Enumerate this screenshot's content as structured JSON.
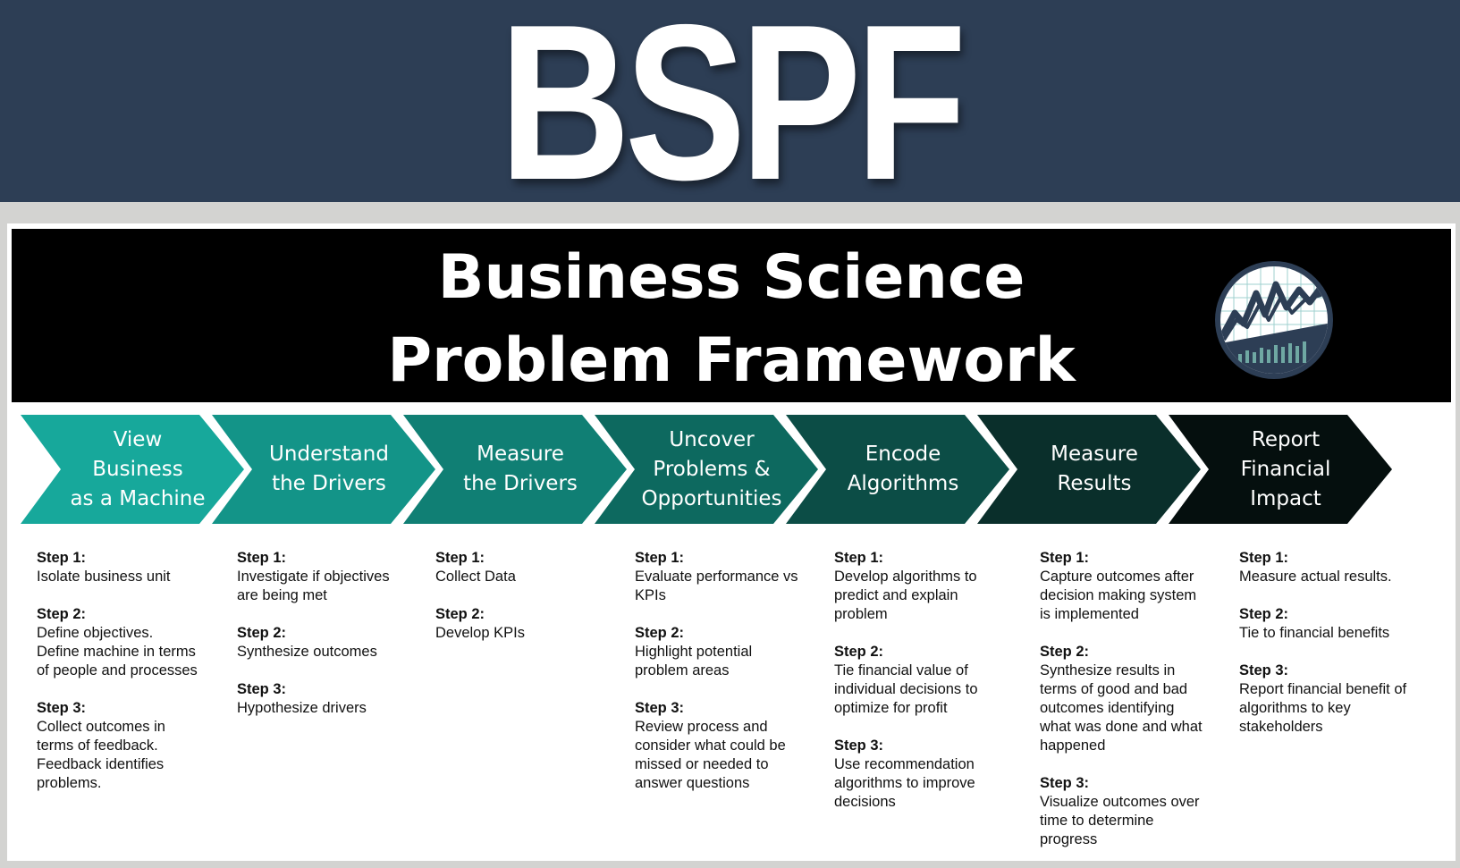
{
  "banner": {
    "title": "BSPF"
  },
  "header": {
    "title_line1": "Business Science",
    "title_line2": "Problem Framework"
  },
  "colors": {
    "banner_bg": "#2d3e55",
    "stage_colors": [
      "#17a89b",
      "#139488",
      "#107f74",
      "#0d695f",
      "#0c4d46",
      "#0a2f2b",
      "#050f0e"
    ]
  },
  "logo": {
    "icon": "business-science-logo-icon"
  },
  "stages": [
    {
      "label": "View\nBusiness\nas a Machine",
      "steps": [
        {
          "label": "Step 1:",
          "text": "Isolate business unit"
        },
        {
          "label": "Step 2:",
          "text": "Define objectives.\nDefine machine in terms\nof people and processes"
        },
        {
          "label": "Step 3:",
          "text": "Collect outcomes in\nterms of feedback.\nFeedback identifies\nproblems."
        }
      ]
    },
    {
      "label": "Understand\nthe Drivers",
      "steps": [
        {
          "label": "Step 1:",
          "text": "Investigate if objectives\nare being met"
        },
        {
          "label": "Step 2:",
          "text": "Synthesize outcomes"
        },
        {
          "label": "Step 3:",
          "text": "Hypothesize drivers"
        }
      ]
    },
    {
      "label": "Measure\nthe Drivers",
      "steps": [
        {
          "label": "Step 1:",
          "text": "Collect Data"
        },
        {
          "label": "Step 2:",
          "text": "Develop KPIs"
        }
      ]
    },
    {
      "label": "Uncover\nProblems &\nOpportunities",
      "steps": [
        {
          "label": "Step 1:",
          "text": "Evaluate performance vs\nKPIs"
        },
        {
          "label": "Step 2:",
          "text": "Highlight potential\nproblem areas"
        },
        {
          "label": "Step 3:",
          "text": "Review process and\nconsider what could be\nmissed or needed to\nanswer questions"
        }
      ]
    },
    {
      "label": "Encode\nAlgorithms",
      "steps": [
        {
          "label": "Step 1:",
          "text": "Develop algorithms to\npredict and explain\nproblem"
        },
        {
          "label": "Step 2:",
          "text": "Tie financial value of\nindividual decisions to\noptimize for profit"
        },
        {
          "label": "Step 3:",
          "text": "Use recommendation\nalgorithms to improve\ndecisions"
        }
      ]
    },
    {
      "label": "Measure\nResults",
      "steps": [
        {
          "label": "Step 1:",
          "text": "Capture outcomes after\ndecision making system\nis implemented"
        },
        {
          "label": "Step 2:",
          "text": "Synthesize results in\nterms of good and bad\noutcomes identifying\nwhat was done and what\nhappened"
        },
        {
          "label": "Step 3:",
          "text": "Visualize outcomes over\ntime to determine\nprogress"
        }
      ]
    },
    {
      "label": "Report\nFinancial\nImpact",
      "steps": [
        {
          "label": "Step 1:",
          "text": "Measure actual results."
        },
        {
          "label": "Step 2:",
          "text": "Tie to financial benefits"
        },
        {
          "label": "Step 3:",
          "text": "Report financial benefit of\nalgorithms to key\nstakeholders"
        }
      ]
    }
  ]
}
